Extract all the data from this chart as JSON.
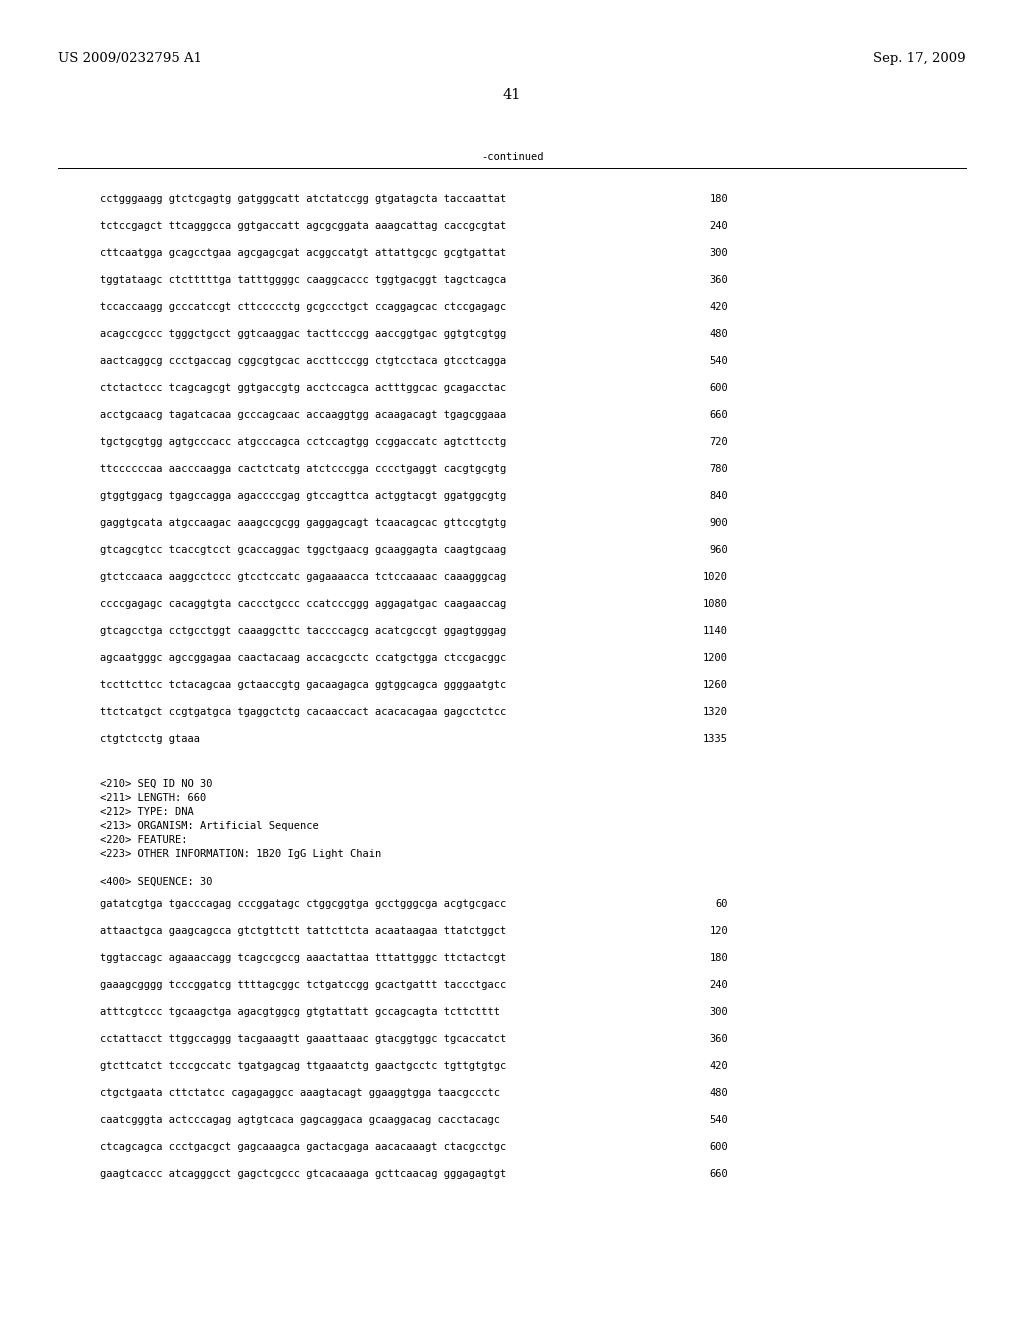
{
  "header_left": "US 2009/0232795 A1",
  "header_right": "Sep. 17, 2009",
  "page_number": "41",
  "continued_label": "-continued",
  "background_color": "#ffffff",
  "text_color": "#000000",
  "font_size_header": 9.5,
  "font_size_page": 10.5,
  "font_size_mono": 7.5,
  "sequence_lines_top": [
    [
      "cctgggaagg gtctcgagtg gatgggcatt atctatccgg gtgatagcta taccaattat",
      "180"
    ],
    [
      "tctccgagct ttcagggcca ggtgaccatt agcgcggata aaagcattag caccgcgtat",
      "240"
    ],
    [
      "cttcaatgga gcagcctgaa agcgagcgat acggccatgt attattgcgc gcgtgattat",
      "300"
    ],
    [
      "tggtataagc ctctttttga tatttggggc caaggcaccc tggtgacggt tagctcagca",
      "360"
    ],
    [
      "tccaccaagg gcccatccgt cttccccctg gcgccctgct ccaggagcac ctccgagagc",
      "420"
    ],
    [
      "acagccgccc tgggctgcct ggtcaaggac tacttcccgg aaccggtgac ggtgtcgtgg",
      "480"
    ],
    [
      "aactcaggcg ccctgaccag cggcgtgcac accttcccgg ctgtcctaca gtcctcagga",
      "540"
    ],
    [
      "ctctactccc tcagcagcgt ggtgaccgtg acctccagca actttggcac gcagacctac",
      "600"
    ],
    [
      "acctgcaacg tagatcacaa gcccagcaac accaaggtgg acaagacagt tgagcggaaa",
      "660"
    ],
    [
      "tgctgcgtgg agtgcccacc atgcccagca cctccagtgg ccggaccatc agtcttcctg",
      "720"
    ],
    [
      "ttccccccaa aacccaagga cactctcatg atctcccgga cccctgaggt cacgtgcgtg",
      "780"
    ],
    [
      "gtggtggacg tgagccagga agaccccgag gtccagttca actggtacgt ggatggcgtg",
      "840"
    ],
    [
      "gaggtgcata atgccaagac aaagccgcgg gaggagcagt tcaacagcac gttccgtgtg",
      "900"
    ],
    [
      "gtcagcgtcc tcaccgtcct gcaccaggac tggctgaacg gcaaggagta caagtgcaag",
      "960"
    ],
    [
      "gtctccaaca aaggcctccc gtcctccatc gagaaaacca tctccaaaac caaagggcag",
      "1020"
    ],
    [
      "ccccgagagc cacaggtgta caccctgccc ccatcccggg aggagatgac caagaaccag",
      "1080"
    ],
    [
      "gtcagcctga cctgcctggt caaaggcttc taccccagcg acatcgccgt ggagtgggag",
      "1140"
    ],
    [
      "agcaatgggc agccggagaa caactacaag accacgcctc ccatgctgga ctccgacggc",
      "1200"
    ],
    [
      "tccttcttcc tctacagcaa gctaaccgtg gacaagagca ggtggcagca ggggaatgtc",
      "1260"
    ],
    [
      "ttctcatgct ccgtgatgca tgaggctctg cacaaccact acacacagaa gagcctctcc",
      "1320"
    ],
    [
      "ctgtctcctg gtaaa",
      "1335"
    ]
  ],
  "metadata_lines": [
    "<210> SEQ ID NO 30",
    "<211> LENGTH: 660",
    "<212> TYPE: DNA",
    "<213> ORGANISM: Artificial Sequence",
    "<220> FEATURE:",
    "<223> OTHER INFORMATION: 1B20 IgG Light Chain"
  ],
  "sequence_label": "<400> SEQUENCE: 30",
  "sequence_lines_bottom": [
    [
      "gatatcgtga tgacccagag cccggatagc ctggcggtga gcctgggcga acgtgcgacc",
      "60"
    ],
    [
      "attaactgca gaagcagcca gtctgttctt tattcttcta acaataagaa ttatctggct",
      "120"
    ],
    [
      "tggtaccagc agaaaccagg tcagccgccg aaactattaa tttattgggc ttctactcgt",
      "180"
    ],
    [
      "gaaagcgggg tcccggatcg ttttagcggc tctgatccgg gcactgattt taccctgacc",
      "240"
    ],
    [
      "atttcgtccc tgcaagctga agacgtggcg gtgtattatt gccagcagta tcttctttt",
      "300"
    ],
    [
      "cctattacct ttggccaggg tacgaaagtt gaaattaaac gtacggtggc tgcaccatct",
      "360"
    ],
    [
      "gtcttcatct tcccgccatc tgatgagcag ttgaaatctg gaactgcctc tgttgtgtgc",
      "420"
    ],
    [
      "ctgctgaata cttctatcc cagagaggcc aaagtacagt ggaaggtgga taacgccctc",
      "480"
    ],
    [
      "caatcgggta actcccagag agtgtcaca gagcaggaca gcaaggacag cacctacagc",
      "540"
    ],
    [
      "ctcagcagca ccctgacgct gagcaaagca gactacgaga aacacaaagt ctacgcctgc",
      "600"
    ],
    [
      "gaagtcaccc atcagggcct gagctcgccc gtcacaaaga gcttcaacag gggagagtgt",
      "660"
    ]
  ]
}
